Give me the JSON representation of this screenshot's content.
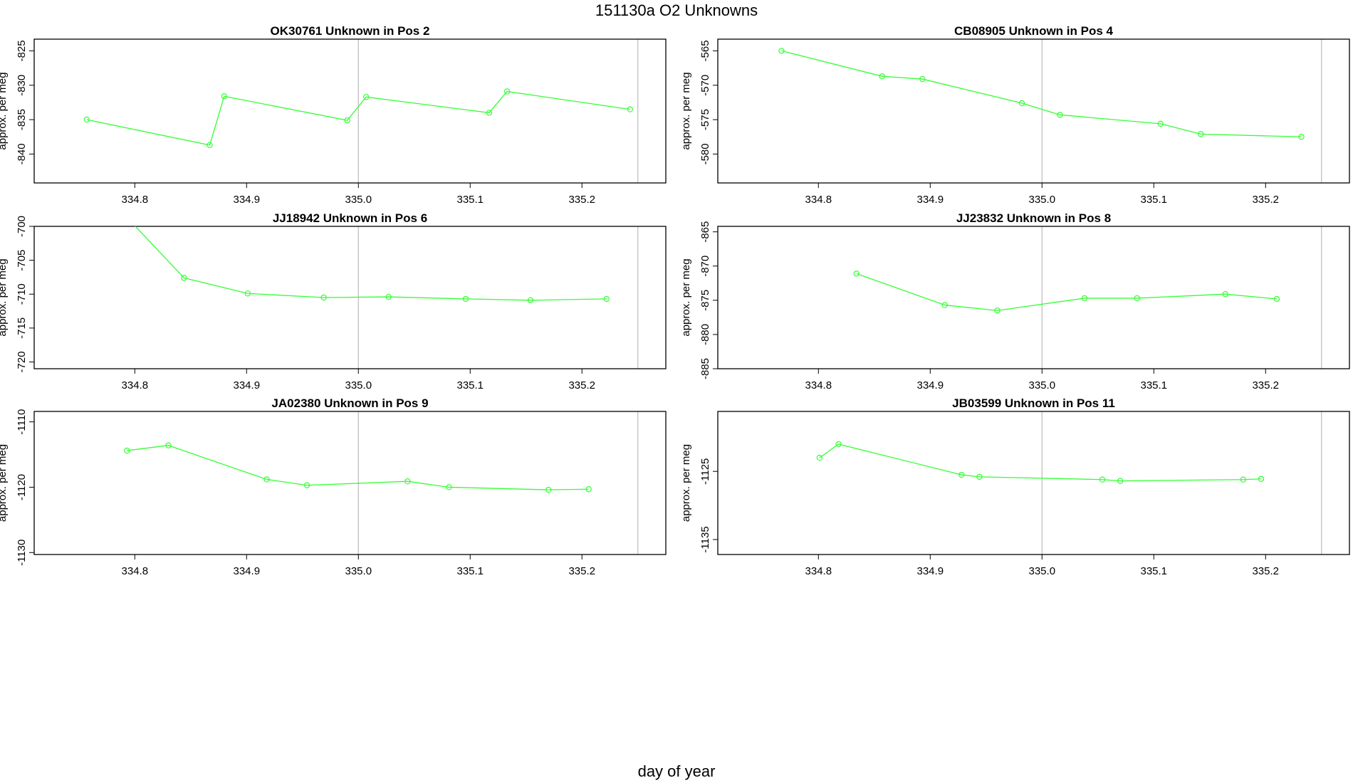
{
  "title": "151130a  O2 Unknowns",
  "xlabel": "day of year",
  "colors": {
    "series": "#33ff33",
    "frame": "#000000",
    "vline": "#bbbbbb"
  },
  "chart_data": [
    {
      "type": "line",
      "title": "OK30761    Unknown in Pos 2",
      "ylabel": "approx. per meg",
      "xlim": [
        334.71,
        335.275
      ],
      "ylim": [
        -844.2,
        -823.3
      ],
      "xticks": [
        "334.8",
        "334.9",
        "335.0",
        "335.1",
        "335.2"
      ],
      "yticks": [
        "-825",
        "-830",
        "-835",
        "-840"
      ],
      "vlines": [
        335.0,
        335.25
      ],
      "x": [
        334.757,
        334.867,
        334.88,
        334.99,
        335.007,
        335.117,
        335.133,
        335.243
      ],
      "y": [
        -835.0,
        -838.7,
        -831.6,
        -835.1,
        -831.7,
        -834.0,
        -830.9,
        -833.5
      ]
    },
    {
      "type": "line",
      "title": "CB08905    Unknown in Pos 4",
      "ylabel": "approx. per meg",
      "xlim": [
        334.71,
        335.275
      ],
      "ylim": [
        -584.2,
        -563.3
      ],
      "xticks": [
        "334.8",
        "334.9",
        "335.0",
        "335.1",
        "335.2"
      ],
      "yticks": [
        "-565",
        "-570",
        "-575",
        "-580"
      ],
      "vlines": [
        335.0,
        335.25
      ],
      "x": [
        334.767,
        334.857,
        334.893,
        334.982,
        335.016,
        335.106,
        335.142,
        335.232
      ],
      "y": [
        -565.0,
        -568.7,
        -569.1,
        -572.6,
        -574.3,
        -575.6,
        -577.1,
        -577.5
      ]
    },
    {
      "type": "line",
      "title": "JJ18942    Unknown in Pos 6",
      "ylabel": "approx. per meg",
      "xlim": [
        334.71,
        335.275
      ],
      "ylim": [
        -721.0,
        -700.0
      ],
      "xticks": [
        "334.8",
        "334.9",
        "335.0",
        "335.1",
        "335.2"
      ],
      "yticks": [
        "-700",
        "-705",
        "-710",
        "-715",
        "-720"
      ],
      "vlines": [
        335.0,
        335.25
      ],
      "x": [
        334.796,
        334.844,
        334.901,
        334.969,
        335.027,
        335.096,
        335.154,
        335.222
      ],
      "y": [
        -699.2,
        -707.6,
        -709.9,
        -710.5,
        -710.4,
        -710.7,
        -710.9,
        -710.7
      ]
    },
    {
      "type": "line",
      "title": "JJ23832    Unknown in Pos 8",
      "ylabel": "approx. per meg",
      "xlim": [
        334.71,
        335.275
      ],
      "ylim": [
        -885.0,
        -864.2
      ],
      "xticks": [
        "334.8",
        "334.9",
        "335.0",
        "335.1",
        "335.2"
      ],
      "yticks": [
        "-865",
        "-870",
        "-875",
        "-880",
        "-885"
      ],
      "vlines": [
        335.0,
        335.25
      ],
      "x": [
        334.834,
        334.913,
        334.96,
        335.038,
        335.085,
        335.164,
        335.21
      ],
      "y": [
        -871.1,
        -875.7,
        -876.5,
        -874.7,
        -874.7,
        -874.1,
        -874.8
      ]
    },
    {
      "type": "line",
      "title": "JA02380    Unknown in Pos 9",
      "ylabel": "approx. per meg",
      "xlim": [
        334.71,
        335.275
      ],
      "ylim": [
        -1130.3,
        -1108.4
      ],
      "xticks": [
        "334.8",
        "334.9",
        "335.0",
        "335.1",
        "335.2"
      ],
      "yticks": [
        "-1110",
        "-1120",
        "-1130"
      ],
      "vlines": [
        335.0,
        335.25
      ],
      "x": [
        334.793,
        334.83,
        334.918,
        334.954,
        335.044,
        335.081,
        335.17,
        335.206
      ],
      "y": [
        -1114.4,
        -1113.6,
        -1118.8,
        -1119.7,
        -1119.1,
        -1120.0,
        -1120.4,
        -1120.3
      ]
    },
    {
      "type": "line",
      "title": "JB03599    Unknown in Pos 11",
      "ylabel": "approx. per meg",
      "xlim": [
        334.71,
        335.275
      ],
      "ylim": [
        -1137.2,
        -1116.2
      ],
      "xticks": [
        "334.8",
        "334.9",
        "335.0",
        "335.1",
        "335.2"
      ],
      "yticks": [
        "-1125",
        "-1135"
      ],
      "vlines": [
        335.0,
        335.25
      ],
      "x": [
        334.801,
        334.818,
        334.928,
        334.944,
        335.054,
        335.07,
        335.18,
        335.196
      ],
      "y": [
        -1123.0,
        -1121.0,
        -1125.5,
        -1125.8,
        -1126.2,
        -1126.4,
        -1126.2,
        -1126.1
      ]
    }
  ]
}
